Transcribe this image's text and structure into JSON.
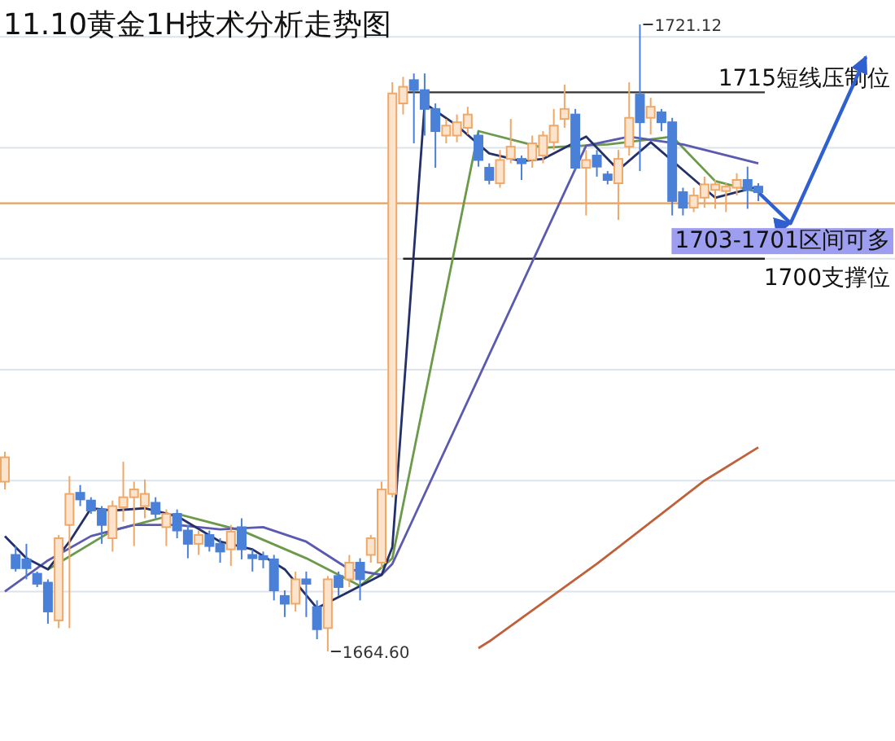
{
  "chart_data": {
    "type": "candlestick",
    "title": "11.10黄金1H技术分析走势图",
    "categories": [
      null,
      null,
      null,
      null,
      null,
      null,
      null,
      null,
      null,
      null,
      null,
      null,
      null,
      null,
      null,
      null,
      null,
      null,
      null,
      null,
      null,
      null,
      null,
      null,
      null,
      null,
      null,
      null,
      null,
      null,
      null,
      null,
      null,
      null,
      null,
      null,
      null,
      null,
      null,
      null,
      null,
      null,
      null,
      null,
      null,
      null,
      null,
      null,
      null,
      null,
      null,
      null,
      null,
      null,
      null,
      null,
      null,
      null,
      null,
      null,
      null,
      null,
      null,
      null,
      null,
      null,
      null,
      null,
      null,
      null,
      null,
      null,
      null,
      null,
      null,
      null,
      null,
      null,
      null,
      null,
      null
    ],
    "ohlc": [
      [
        1679.9,
        1682.6,
        1679.2,
        1682.1
      ],
      [
        1673.3,
        1674.1,
        1671.8,
        1672.1
      ],
      [
        1672.9,
        1674.3,
        1671.1,
        1672.1
      ],
      [
        1671.6,
        1671.8,
        1670.4,
        1670.7
      ],
      [
        1670.8,
        1671.1,
        1667.1,
        1668.2
      ],
      [
        1667.4,
        1675.1,
        1666.7,
        1674.8
      ],
      [
        1676.0,
        1680.4,
        1666.7,
        1678.8
      ],
      [
        1678.9,
        1679.6,
        1677.7,
        1678.3
      ],
      [
        1678.2,
        1678.5,
        1677.0,
        1677.3
      ],
      [
        1677.4,
        1677.7,
        1674.3,
        1676.0
      ],
      [
        1674.8,
        1678.2,
        1673.6,
        1677.7
      ],
      [
        1677.6,
        1681.7,
        1676.3,
        1678.5
      ],
      [
        1678.5,
        1679.9,
        1674.1,
        1679.2
      ],
      [
        1677.7,
        1680.1,
        1676.6,
        1678.8
      ],
      [
        1678.0,
        1678.5,
        1676.6,
        1677.0
      ],
      [
        1675.8,
        1677.4,
        1674.1,
        1677.0
      ],
      [
        1677.0,
        1677.4,
        1674.8,
        1675.5
      ],
      [
        1675.5,
        1676.0,
        1673.0,
        1674.3
      ],
      [
        1674.3,
        1675.5,
        1673.3,
        1675.1
      ],
      [
        1675.1,
        1675.5,
        1673.6,
        1674.1
      ],
      [
        1674.3,
        1674.8,
        1672.6,
        1673.6
      ],
      [
        1673.8,
        1676.0,
        1672.3,
        1675.4
      ],
      [
        1675.8,
        1676.6,
        1672.9,
        1673.8
      ],
      [
        1673.3,
        1673.8,
        1671.8,
        1673.0
      ],
      [
        1673.2,
        1673.6,
        1672.1,
        1672.9
      ],
      [
        1672.9,
        1673.3,
        1669.2,
        1670.1
      ],
      [
        1669.6,
        1670.1,
        1667.7,
        1668.9
      ],
      [
        1668.9,
        1671.8,
        1668.2,
        1671.1
      ],
      [
        1671.1,
        1671.8,
        1667.7,
        1670.7
      ],
      [
        1668.6,
        1669.2,
        1665.7,
        1666.6
      ],
      [
        1666.7,
        1671.4,
        1664.6,
        1671.1
      ],
      [
        1671.4,
        1671.8,
        1669.6,
        1670.4
      ],
      [
        1671.1,
        1673.3,
        1670.4,
        1672.6
      ],
      [
        1672.6,
        1673.0,
        1669.2,
        1671.1
      ],
      [
        1673.3,
        1675.1,
        1672.6,
        1674.8
      ],
      [
        1672.6,
        1679.9,
        1672.1,
        1679.2
      ],
      [
        1678.8,
        1715.9,
        1678.5,
        1714.9
      ],
      [
        1714.0,
        1716.4,
        1713.0,
        1715.5
      ],
      [
        1716.1,
        1716.7,
        1710.4,
        1715.2
      ],
      [
        1715.2,
        1716.7,
        1711.1,
        1713.5
      ],
      [
        1713.5,
        1714.0,
        1708.2,
        1711.5
      ],
      [
        1711.1,
        1712.6,
        1710.4,
        1712.0
      ],
      [
        1711.1,
        1713.0,
        1710.5,
        1712.3
      ],
      [
        1711.8,
        1713.7,
        1711.2,
        1713.0
      ],
      [
        1711.1,
        1711.5,
        1708.3,
        1708.9
      ],
      [
        1708.2,
        1708.6,
        1706.7,
        1707.1
      ],
      [
        1706.8,
        1709.8,
        1706.4,
        1708.9
      ],
      [
        1709.0,
        1712.6,
        1708.6,
        1710.1
      ],
      [
        1709.0,
        1709.3,
        1707.1,
        1708.6
      ],
      [
        1708.9,
        1711.1,
        1708.2,
        1710.4
      ],
      [
        1709.3,
        1711.5,
        1708.6,
        1711.1
      ],
      [
        1710.5,
        1713.5,
        1709.8,
        1712.0
      ],
      [
        1712.6,
        1715.7,
        1711.8,
        1713.5
      ],
      [
        1713.0,
        1713.5,
        1707.9,
        1708.2
      ],
      [
        1708.2,
        1709.8,
        1703.9,
        1708.9
      ],
      [
        1709.3,
        1709.8,
        1707.4,
        1708.3
      ],
      [
        1707.6,
        1707.9,
        1706.7,
        1707.1
      ],
      [
        1706.8,
        1709.8,
        1703.5,
        1709.0
      ],
      [
        1710.1,
        1715.9,
        1709.3,
        1712.7
      ],
      [
        1714.8,
        1721.12,
        1707.9,
        1712.3
      ],
      [
        1712.7,
        1714.5,
        1711.2,
        1713.7
      ],
      [
        1713.2,
        1713.5,
        1711.5,
        1712.3
      ],
      [
        1712.3,
        1712.7,
        1703.9,
        1705.2
      ],
      [
        1706.0,
        1706.4,
        1703.9,
        1704.6
      ],
      [
        1704.6,
        1706.4,
        1704.2,
        1705.7
      ],
      [
        1705.5,
        1707.4,
        1704.6,
        1706.7
      ],
      [
        1706.2,
        1707.1,
        1704.5,
        1706.7
      ],
      [
        1706.1,
        1706.8,
        1704.2,
        1706.5
      ],
      [
        1706.4,
        1707.7,
        1705.7,
        1707.1
      ],
      [
        1707.1,
        1708.3,
        1704.5,
        1706.2
      ],
      [
        1706.5,
        1706.8,
        1705.2,
        1706.0
      ],
      null,
      null,
      null,
      null,
      null,
      null,
      null,
      null,
      null,
      null
    ],
    "colors": [
      "#f0a868",
      "#4a80d8",
      "#4a80d8",
      "#4a80d8",
      "#4a80d8",
      "#f0a868",
      "#f0a868",
      "#4a80d8",
      "#4a80d8",
      "#4a80d8",
      "#f0a868",
      "#f0a868",
      "#f0a868",
      "#f0a868",
      "#4a80d8",
      "#f0a868",
      "#4a80d8",
      "#4a80d8",
      "#f0a868",
      "#4a80d8",
      "#4a80d8",
      "#f0a868",
      "#4a80d8",
      "#4a80d8",
      "#4a80d8",
      "#4a80d8",
      "#4a80d8",
      "#f0a868",
      "#4a80d8",
      "#4a80d8",
      "#f0a868",
      "#4a80d8",
      "#f0a868",
      "#4a80d8",
      "#f0a868",
      "#f0a868",
      "#f0a868",
      "#f0a868",
      "#4a80d8",
      "#4a80d8",
      "#4a80d8",
      "#f0a868",
      "#f0a868",
      "#f0a868",
      "#4a80d8",
      "#4a80d8",
      "#f0a868",
      "#f0a868",
      "#4a80d8",
      "#f0a868",
      "#f0a868",
      "#f0a868",
      "#f0a868",
      "#4a80d8",
      "#f0a868",
      "#4a80d8",
      "#4a80d8",
      "#f0a868",
      "#f0a868",
      "#4a80d8",
      "#f0a868",
      "#4a80d8",
      "#4a80d8",
      "#4a80d8",
      "#f0a868",
      "#f0a868",
      "#f0a868",
      "#f0a868",
      "#f0a868",
      "#4a80d8",
      "#4a80d8",
      null,
      null,
      null,
      null,
      null,
      null,
      null,
      null,
      null,
      null
    ],
    "series": [
      {
        "type": "line",
        "color": "#6a9a4a",
        "values": [
          null,
          null,
          null,
          null,
          1672.0,
          null,
          null,
          null,
          null,
          null,
          1675.5,
          null,
          null,
          null,
          null,
          null,
          1677.0,
          null,
          null,
          null,
          null,
          null,
          1675.5,
          null,
          null,
          null,
          null,
          null,
          1673.0,
          null,
          null,
          null,
          null,
          1670.5,
          null,
          null,
          1673.0,
          null,
          null,
          null,
          null,
          null,
          null,
          null,
          1711.5,
          null,
          null,
          null,
          null,
          null,
          1710.0,
          null,
          null,
          null,
          null,
          null,
          1710.3,
          null,
          null,
          null,
          null,
          null,
          1711.0,
          null,
          null,
          null,
          1707.0,
          null,
          null,
          null,
          1706.0,
          null,
          null,
          null,
          null,
          null,
          null,
          null,
          null,
          null,
          null
        ]
      },
      {
        "type": "line",
        "color": "#5a5ab0",
        "values": [
          1670.0,
          null,
          null,
          null,
          1672.8,
          null,
          null,
          null,
          1675.0,
          null,
          null,
          null,
          1676.0,
          null,
          null,
          null,
          1676.0,
          null,
          null,
          null,
          1675.6,
          null,
          null,
          null,
          1675.8,
          null,
          null,
          null,
          1674.5,
          null,
          null,
          null,
          1672.0,
          null,
          null,
          1671.5,
          1672.5,
          null,
          null,
          null,
          null,
          null,
          null,
          null,
          null,
          null,
          null,
          null,
          null,
          null,
          null,
          null,
          null,
          null,
          1710.2,
          null,
          null,
          null,
          1711.0,
          null,
          null,
          null,
          null,
          1710.3,
          null,
          null,
          null,
          null,
          null,
          null,
          1708.6,
          null,
          null,
          null,
          null,
          null,
          null,
          null,
          null,
          null,
          null
        ]
      },
      {
        "type": "line",
        "color": "#23306a",
        "values": [
          1675.0,
          null,
          1673.0,
          null,
          1672.0,
          null,
          1674.5,
          null,
          1677.5,
          null,
          1677.3,
          null,
          null,
          1677.5,
          null,
          null,
          1676.8,
          null,
          null,
          null,
          1674.5,
          null,
          null,
          1673.8,
          null,
          null,
          1672.0,
          null,
          null,
          1668.5,
          null,
          null,
          1670.0,
          null,
          null,
          1671.5,
          1674.0,
          null,
          null,
          1714.0,
          null,
          null,
          1712.0,
          null,
          null,
          1709.5,
          null,
          null,
          1708.8,
          null,
          1709.0,
          null,
          null,
          null,
          1711.0,
          null,
          null,
          1708.0,
          null,
          null,
          1710.5,
          null,
          null,
          1708.0,
          null,
          null,
          1705.5,
          null,
          null,
          null,
          1706.5,
          null,
          null,
          null,
          null,
          null,
          null,
          null,
          null,
          null,
          null
        ]
      },
      {
        "type": "line",
        "color": "#c0603a",
        "values": [
          null,
          null,
          null,
          null,
          null,
          null,
          null,
          null,
          null,
          null,
          null,
          null,
          null,
          null,
          null,
          null,
          null,
          null,
          null,
          null,
          null,
          null,
          null,
          null,
          null,
          null,
          null,
          null,
          null,
          null,
          null,
          null,
          null,
          null,
          null,
          null,
          null,
          null,
          null,
          null,
          null,
          null,
          null,
          null,
          1664.9,
          1665.5,
          null,
          null,
          null,
          null,
          null,
          null,
          null,
          null,
          null,
          1672.5,
          null,
          null,
          null,
          null,
          null,
          null,
          null,
          null,
          null,
          1680.0,
          null,
          null,
          null,
          null,
          1683.0,
          null,
          null,
          null,
          null,
          null,
          null,
          null,
          null,
          null,
          null
        ]
      },
      {
        "type": "line",
        "color": "#3060d0",
        "line_style": "solid",
        "values": [
          null,
          null,
          null,
          null,
          null,
          null,
          null,
          null,
          null,
          null,
          null,
          null,
          null,
          null,
          null,
          null,
          null,
          null,
          null,
          null,
          null,
          null,
          null,
          null,
          null,
          null,
          null,
          null,
          null,
          null,
          null,
          null,
          null,
          null,
          null,
          null,
          null,
          null,
          null,
          null,
          null,
          null,
          null,
          null,
          null,
          null,
          null,
          null,
          null,
          null,
          null,
          null,
          null,
          null,
          null,
          null,
          null,
          null,
          null,
          null,
          null,
          null,
          null,
          null,
          null,
          null,
          null,
          null,
          null,
          null,
          1706.0,
          null,
          null,
          1703.2,
          null,
          null,
          null,
          null,
          null,
          null,
          1718.2
        ]
      }
    ],
    "yticks": [
      {
        "value": 1670,
        "label": null
      },
      {
        "value": 1680,
        "label": null
      },
      {
        "value": 1690,
        "label": null
      },
      {
        "value": 1700,
        "label": null
      },
      {
        "value": 1710,
        "label": null
      },
      {
        "value": 1720,
        "label": null
      }
    ],
    "grid": "y",
    "ref_lines": [
      {
        "axis": "y",
        "value": 1715,
        "label": "1715短线压制位",
        "color": "#333333"
      },
      {
        "axis": "y",
        "value": 1700,
        "label": "1700支撑位",
        "color": "#222222"
      },
      {
        "axis": "y",
        "value": 1705,
        "color": "#e8a060"
      }
    ],
    "annotations": [
      "1721.12",
      "1664.60",
      "1703-1701区间可多"
    ]
  }
}
